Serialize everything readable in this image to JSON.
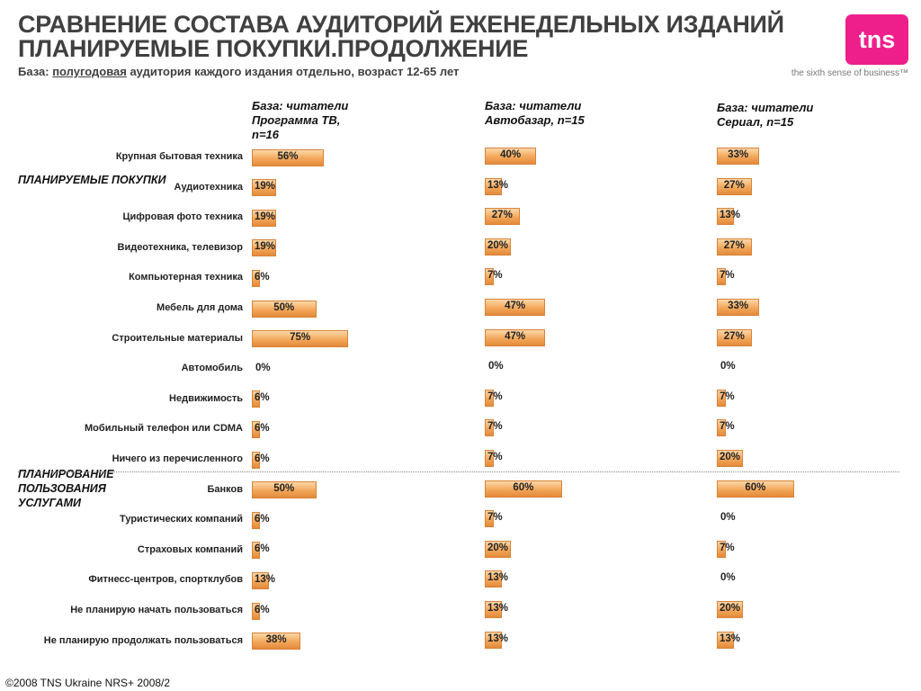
{
  "header": {
    "title_line1": "СРАВНЕНИЕ СОСТАВА АУДИТОРИЙ ЕЖЕНЕДЕЛЬНЫХ ИЗДАНИЙ",
    "title_line2": "ПЛАНИРУЕМЫЕ ПОКУПКИ.ПРОДОЛЖЕНИЕ",
    "subtitle_prefix": "База: ",
    "subtitle_underlined": "полугодовая",
    "subtitle_suffix": " аудитория каждого издания отдельно, возраст 12-65 лет"
  },
  "brand": {
    "logo_text": "tns",
    "tagline": "the sixth sense of business™",
    "logo_color": "#ee1f8b"
  },
  "sections": {
    "purchases": "ПЛАНИРУЕМЫЕ ПОКУПКИ",
    "services": "ПЛАНИРОВАНИЕ ПОЛЬЗОВАНИЯ УСЛУГАМИ"
  },
  "footer": {
    "copyright": "©2008 TNS Ukraine  NRS+ 2008/2"
  },
  "chart_data": {
    "type": "bar",
    "orientation": "horizontal",
    "unit": "%",
    "bar_color": "#f2a75a",
    "categories": [
      "Крупная бытовая техника",
      "Аудиотехника",
      "Цифровая фото техника",
      "Видеотехника, телевизор",
      "Компьютерная техника",
      "Мебель для дома",
      "Строительные материалы",
      "Автомобиль",
      "Недвижимость",
      "Мобильный телефон или CDMA",
      "Ничего из перечисленного",
      "Банков",
      "Туристических компаний",
      "Страховых компаний",
      "Фитнесс-центров, спортклубов",
      "Не планирую начать пользоваться",
      "Не планирую продолжать пользоваться"
    ],
    "series": [
      {
        "name": "База: читатели Программа ТВ, n=16",
        "values": [
          56,
          19,
          19,
          19,
          6,
          50,
          75,
          0,
          6,
          6,
          6,
          50,
          6,
          6,
          13,
          6,
          38
        ]
      },
      {
        "name": "База: читатели Автобазар, n=15",
        "values": [
          40,
          13,
          27,
          20,
          7,
          47,
          47,
          0,
          7,
          7,
          7,
          60,
          7,
          20,
          13,
          13,
          13
        ]
      },
      {
        "name": "База: читатели Сериал, n=15",
        "values": [
          33,
          27,
          13,
          27,
          7,
          33,
          27,
          0,
          7,
          7,
          20,
          60,
          0,
          7,
          0,
          20,
          13
        ]
      }
    ]
  }
}
